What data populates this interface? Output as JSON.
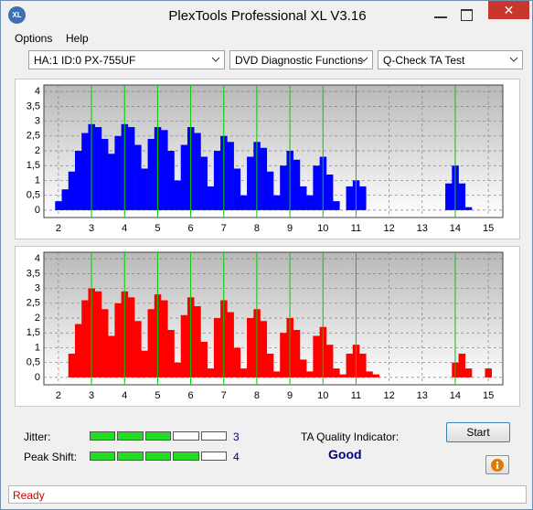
{
  "window": {
    "title": "PlexTools Professional XL V3.16",
    "icon": "XL"
  },
  "menu": [
    "Options",
    "Help"
  ],
  "selects": [
    "HA:1 ID:0  PX-755UF",
    "DVD Diagnostic Functions",
    "Q-Check TA Test"
  ],
  "charts": [
    {
      "type": "bar",
      "color": "#0000ff",
      "marker_color": "#00cc00",
      "xlim": [
        1.56,
        15.44
      ],
      "ylim": [
        -0.25,
        4.22
      ],
      "xticks": [
        2,
        3,
        4,
        5,
        6,
        7,
        8,
        9,
        10,
        11,
        12,
        13,
        14,
        15
      ],
      "yticks": [
        0,
        {
          "value": 0.5,
          "label": "0,5"
        },
        1,
        {
          "value": 1.5,
          "label": "1,5"
        },
        2,
        {
          "value": 2.5,
          "label": "2,5"
        },
        3,
        {
          "value": 3.5,
          "label": "3,5"
        },
        4
      ],
      "markers": [
        3,
        4,
        5,
        6,
        7,
        8,
        9,
        10,
        11,
        14
      ],
      "x": [
        2.0,
        2.2,
        2.4,
        2.6,
        2.8,
        3.0,
        3.2,
        3.4,
        3.6,
        3.8,
        4.0,
        4.2,
        4.4,
        4.6,
        4.8,
        5.0,
        5.2,
        5.4,
        5.6,
        5.8,
        6.0,
        6.2,
        6.4,
        6.6,
        6.8,
        7.0,
        7.2,
        7.4,
        7.6,
        7.8,
        8.0,
        8.2,
        8.4,
        8.6,
        8.8,
        9.0,
        9.2,
        9.4,
        9.6,
        9.8,
        10.0,
        10.2,
        10.4,
        10.6,
        10.8,
        11.0,
        11.2,
        11.4,
        11.6,
        11.8,
        12.0,
        12.2,
        12.4,
        12.6,
        12.8,
        13.0,
        13.2,
        13.4,
        13.6,
        13.8,
        14.0,
        14.2,
        14.4,
        14.6,
        14.8,
        15.0
      ],
      "values": [
        0.3,
        0.7,
        1.3,
        2.0,
        2.6,
        2.9,
        2.8,
        2.4,
        1.9,
        2.5,
        2.9,
        2.8,
        2.2,
        1.4,
        2.4,
        2.8,
        2.7,
        2.0,
        1.0,
        2.2,
        2.8,
        2.6,
        1.8,
        0.8,
        2.0,
        2.5,
        2.3,
        1.4,
        0.5,
        1.8,
        2.3,
        2.1,
        1.3,
        0.5,
        1.5,
        2.0,
        1.7,
        0.8,
        0.5,
        1.5,
        1.8,
        1.2,
        0.3,
        0,
        0.8,
        1.0,
        0.8,
        0,
        0,
        0,
        0,
        0,
        0,
        0,
        0,
        0,
        0,
        0,
        0,
        0.9,
        1.5,
        0.9,
        0.1,
        0,
        0,
        0
      ]
    },
    {
      "type": "bar",
      "color": "#ff0000",
      "marker_color": "#00cc00",
      "xlim": [
        1.56,
        15.44
      ],
      "ylim": [
        -0.25,
        4.22
      ],
      "xticks": [
        2,
        3,
        4,
        5,
        6,
        7,
        8,
        9,
        10,
        11,
        12,
        13,
        14,
        15
      ],
      "yticks": [
        0,
        {
          "value": 0.5,
          "label": "0,5"
        },
        1,
        {
          "value": 1.5,
          "label": "1,5"
        },
        2,
        {
          "value": 2.5,
          "label": "2,5"
        },
        3,
        {
          "value": 3.5,
          "label": "3,5"
        },
        4
      ],
      "markers": [
        3,
        4,
        5,
        6,
        7,
        8,
        9,
        10,
        11,
        14
      ],
      "x": [
        2.0,
        2.2,
        2.4,
        2.6,
        2.8,
        3.0,
        3.2,
        3.4,
        3.6,
        3.8,
        4.0,
        4.2,
        4.4,
        4.6,
        4.8,
        5.0,
        5.2,
        5.4,
        5.6,
        5.8,
        6.0,
        6.2,
        6.4,
        6.6,
        6.8,
        7.0,
        7.2,
        7.4,
        7.6,
        7.8,
        8.0,
        8.2,
        8.4,
        8.6,
        8.8,
        9.0,
        9.2,
        9.4,
        9.6,
        9.8,
        10.0,
        10.2,
        10.4,
        10.6,
        10.8,
        11.0,
        11.2,
        11.4,
        11.6,
        11.8,
        12.0,
        12.2,
        12.4,
        12.6,
        12.8,
        13.0,
        13.2,
        13.4,
        13.6,
        13.8,
        14.0,
        14.2,
        14.4,
        14.6,
        14.8,
        15.0
      ],
      "values": [
        0,
        0,
        0.8,
        1.8,
        2.6,
        3.0,
        2.9,
        2.3,
        1.4,
        2.5,
        2.9,
        2.7,
        1.9,
        0.9,
        2.3,
        2.8,
        2.6,
        1.6,
        0.5,
        2.1,
        2.7,
        2.4,
        1.2,
        0.3,
        2.0,
        2.6,
        2.2,
        1.0,
        0.3,
        2.0,
        2.3,
        1.9,
        0.8,
        0.2,
        1.5,
        2.0,
        1.6,
        0.6,
        0.2,
        1.4,
        1.7,
        1.1,
        0.3,
        0.1,
        0.8,
        1.1,
        0.8,
        0.2,
        0.1,
        0,
        0,
        0,
        0,
        0,
        0,
        0,
        0,
        0,
        0,
        0,
        0.5,
        0.8,
        0.3,
        0,
        0,
        0.3
      ]
    }
  ],
  "jitter": {
    "label": "Jitter:",
    "value": 3
  },
  "peak_shift": {
    "label": "Peak Shift:",
    "value": 4
  },
  "ta_quality": {
    "label": "TA Quality Indicator:",
    "value": "Good"
  },
  "start_button": "Start",
  "status": "Ready"
}
